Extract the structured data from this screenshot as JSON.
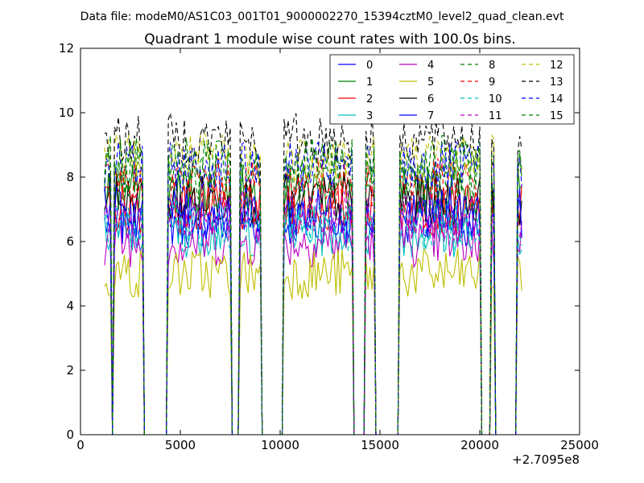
{
  "figure": {
    "suptitle": "Data file: modeM0/AS1C03_001T01_9000002270_15394cztM0_level2_quad_clean.evt"
  },
  "chart_data": {
    "type": "line",
    "title": "Quadrant 1 module wise count rates with 100.0s bins.",
    "xlabel": "",
    "ylabel": "",
    "x_offset_label": "+2.7095e8",
    "xlim": [
      0,
      25000
    ],
    "ylim": [
      0,
      12
    ],
    "x_ticks": [
      0,
      5000,
      10000,
      15000,
      20000,
      25000
    ],
    "y_ticks": [
      0,
      2,
      4,
      6,
      8,
      10,
      12
    ],
    "grid": false,
    "legend_position": "top-right",
    "legend_columns": 4,
    "segments": [
      [
        1200,
        1500
      ],
      [
        1700,
        3100
      ],
      [
        4400,
        7500
      ],
      [
        8000,
        9000
      ],
      [
        10200,
        13600
      ],
      [
        14300,
        14700
      ],
      [
        16000,
        20000
      ],
      [
        20600,
        20700
      ],
      [
        21900,
        22100
      ]
    ],
    "series": [
      {
        "name": "0",
        "color": "#0000ff",
        "style": "solid",
        "level": 6.6
      },
      {
        "name": "1",
        "color": "#008000",
        "style": "solid",
        "level": 7.6
      },
      {
        "name": "2",
        "color": "#ff0000",
        "style": "solid",
        "level": 7.0
      },
      {
        "name": "3",
        "color": "#00bfbf",
        "style": "solid",
        "level": 6.3
      },
      {
        "name": "4",
        "color": "#bf00bf",
        "style": "solid",
        "level": 6.0
      },
      {
        "name": "5",
        "color": "#bfbf00",
        "style": "solid",
        "level": 5.0
      },
      {
        "name": "6",
        "color": "#000000",
        "style": "solid",
        "level": 7.3
      },
      {
        "name": "7",
        "color": "#0000ff",
        "style": "solid",
        "level": 6.9
      },
      {
        "name": "8",
        "color": "#008000",
        "style": "dashed",
        "level": 8.1
      },
      {
        "name": "9",
        "color": "#ff0000",
        "style": "dashed",
        "level": 7.8
      },
      {
        "name": "10",
        "color": "#00bfbf",
        "style": "dashed",
        "level": 6.5
      },
      {
        "name": "11",
        "color": "#bf00bf",
        "style": "dashed",
        "level": 6.8
      },
      {
        "name": "12",
        "color": "#bfbf00",
        "style": "dashed",
        "level": 8.6
      },
      {
        "name": "13",
        "color": "#000000",
        "style": "dashed",
        "level": 9.2
      },
      {
        "name": "14",
        "color": "#0000ff",
        "style": "dashed",
        "level": 8.3
      },
      {
        "name": "15",
        "color": "#008000",
        "style": "dashed",
        "level": 8.5
      }
    ]
  }
}
